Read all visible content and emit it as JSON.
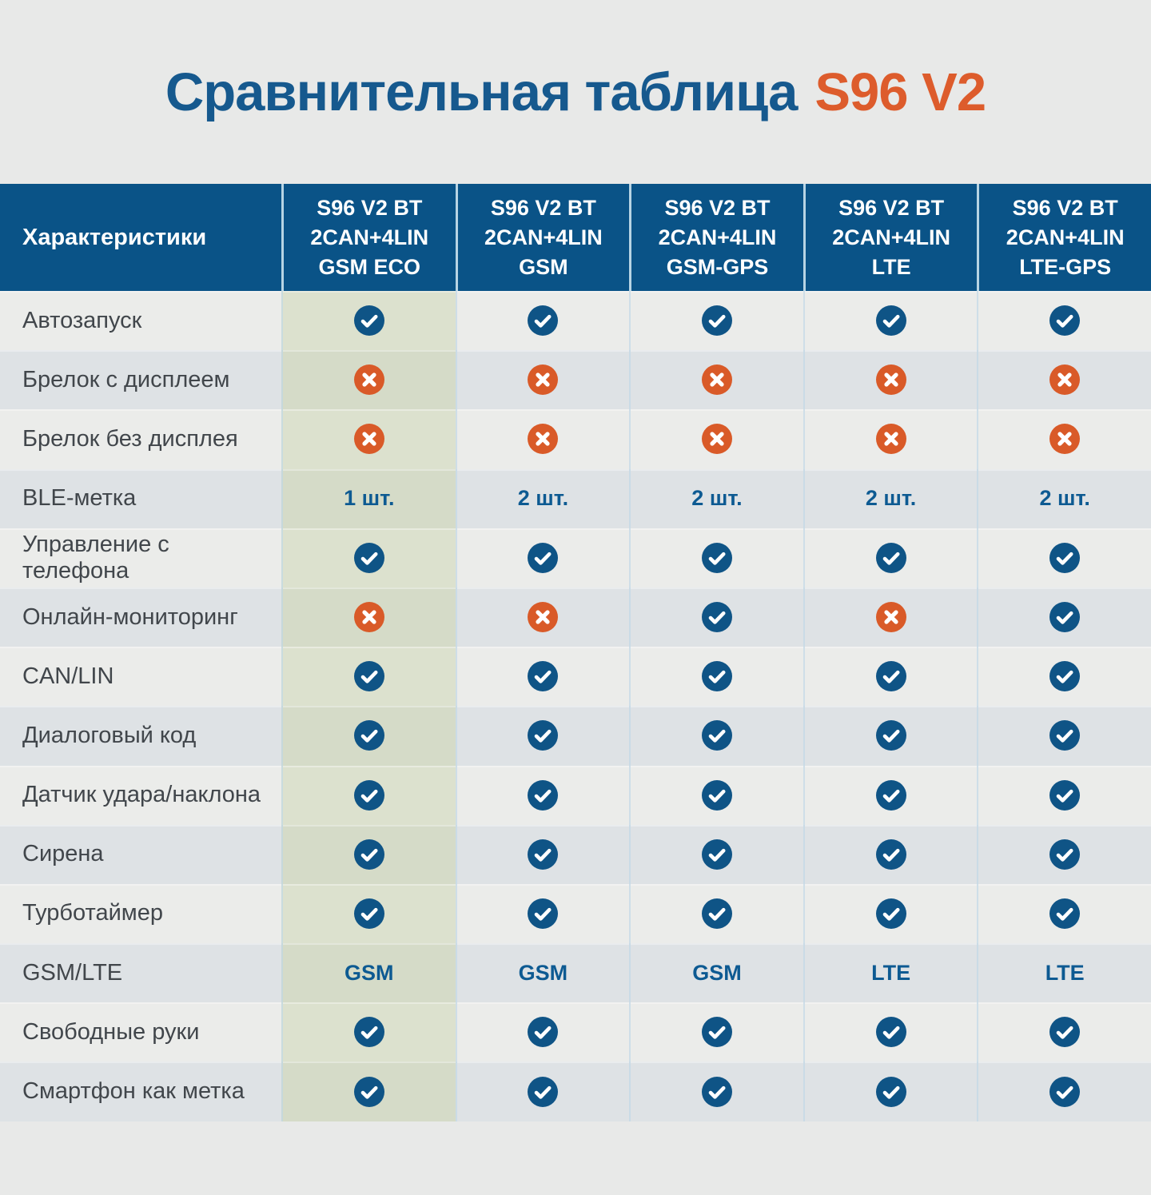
{
  "title": {
    "main": "Сравнительная таблица",
    "accent": "S96 V2"
  },
  "colors": {
    "page_bg": "#e8e9e8",
    "header_blue": "#0a5387",
    "title_blue": "#16598e",
    "accent_orange": "#dd5c2c",
    "check_blue": "#0f5486",
    "cross_orange": "#d95a28",
    "value_blue": "#0d5a92",
    "label_gray": "#41464b",
    "row_light": "#ebecea",
    "row_dark": "#dee2e5",
    "green_column_light": "#dce1ce",
    "green_column_dark": "#d5dbc8"
  },
  "icons": {
    "check": "check-icon",
    "cross": "cross-icon"
  },
  "table": {
    "header_label": "Характеристики",
    "columns": [
      {
        "lines": [
          "S96 V2 BT",
          "2CAN+4LIN",
          "GSM ECO"
        ],
        "highlight": true
      },
      {
        "lines": [
          "S96 V2 BT",
          "2CAN+4LIN",
          "GSM"
        ],
        "highlight": false
      },
      {
        "lines": [
          "S96 V2 BT",
          "2CAN+4LIN",
          "GSM-GPS"
        ],
        "highlight": false
      },
      {
        "lines": [
          "S96 V2 BT",
          "2CAN+4LIN",
          "LTE"
        ],
        "highlight": false
      },
      {
        "lines": [
          "S96 V2 BT",
          "2CAN+4LIN",
          "LTE-GPS"
        ],
        "highlight": false
      }
    ],
    "rows": [
      {
        "label": "Автозапуск",
        "cells": [
          "check",
          "check",
          "check",
          "check",
          "check"
        ]
      },
      {
        "label": "Брелок с дисплеем",
        "cells": [
          "cross",
          "cross",
          "cross",
          "cross",
          "cross"
        ]
      },
      {
        "label": "Брелок без дисплея",
        "cells": [
          "cross",
          "cross",
          "cross",
          "cross",
          "cross"
        ]
      },
      {
        "label": "BLE-метка",
        "cells": [
          "1 шт.",
          "2 шт.",
          "2 шт.",
          "2 шт.",
          "2 шт."
        ]
      },
      {
        "label": "Управление с телефона",
        "cells": [
          "check",
          "check",
          "check",
          "check",
          "check"
        ]
      },
      {
        "label": "Онлайн-мониторинг",
        "cells": [
          "cross",
          "cross",
          "check",
          "cross",
          "check"
        ]
      },
      {
        "label": "CAN/LIN",
        "cells": [
          "check",
          "check",
          "check",
          "check",
          "check"
        ]
      },
      {
        "label": "Диалоговый код",
        "cells": [
          "check",
          "check",
          "check",
          "check",
          "check"
        ]
      },
      {
        "label": "Датчик удара/наклона",
        "cells": [
          "check",
          "check",
          "check",
          "check",
          "check"
        ]
      },
      {
        "label": "Сирена",
        "cells": [
          "check",
          "check",
          "check",
          "check",
          "check"
        ]
      },
      {
        "label": "Турботаймер",
        "cells": [
          "check",
          "check",
          "check",
          "check",
          "check"
        ]
      },
      {
        "label": "GSM/LTE",
        "cells": [
          "GSM",
          "GSM",
          "GSM",
          "LTE",
          "LTE"
        ]
      },
      {
        "label": "Свободные руки",
        "cells": [
          "check",
          "check",
          "check",
          "check",
          "check"
        ]
      },
      {
        "label": "Смартфон как метка",
        "cells": [
          "check",
          "check",
          "check",
          "check",
          "check"
        ]
      }
    ]
  }
}
